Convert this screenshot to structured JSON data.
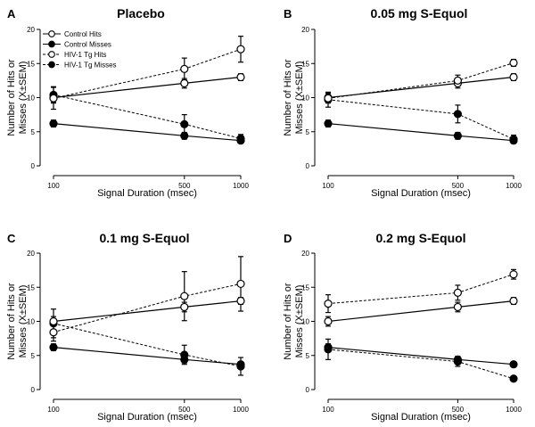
{
  "figure": {
    "panel_letters": [
      "A",
      "B",
      "C",
      "D"
    ],
    "legend": [
      "Control Hits",
      "Control Misses",
      "HIV-1 Tg Hits",
      "HIV-1 Tg Misses"
    ]
  },
  "chart_data": [
    {
      "type": "line",
      "panel": "A",
      "title": "Placebo",
      "xlabel": "Signal Duration (msec)",
      "ylabel": [
        "Number of Hits or",
        "Misses (X±SEM)"
      ],
      "x": [
        100,
        500,
        1000
      ],
      "x_tick_labels": [
        "100",
        "500",
        "1000"
      ],
      "ylim": [
        0,
        20
      ],
      "y_ticks": [
        0,
        5,
        10,
        15,
        20
      ],
      "legend_placement": "top-left",
      "series": [
        {
          "name": "Control Hits",
          "marker": "open",
          "line": "solid",
          "values": [
            10.0,
            12.1,
            13.0
          ],
          "errors": [
            0.7,
            0.7,
            0.5
          ]
        },
        {
          "name": "Control Misses",
          "marker": "filled",
          "line": "solid",
          "values": [
            6.2,
            4.4,
            3.7
          ],
          "errors": [
            0.5,
            0.5,
            0.4
          ]
        },
        {
          "name": "HIV-1 Tg Hits",
          "marker": "open",
          "line": "dashed",
          "values": [
            9.9,
            14.2,
            17.1
          ],
          "errors": [
            1.6,
            1.6,
            1.9
          ]
        },
        {
          "name": "HIV-1 Tg Misses",
          "marker": "filled",
          "line": "dashed",
          "values": [
            10.4,
            6.1,
            4.0
          ],
          "errors": [
            1.2,
            1.4,
            0.6
          ]
        }
      ]
    },
    {
      "type": "line",
      "panel": "B",
      "title": "0.05 mg S-Equol",
      "xlabel": "Signal Duration (msec)",
      "ylabel": [
        "Number of Hits or",
        "Misses (X±SEM)"
      ],
      "x": [
        100,
        500,
        1000
      ],
      "x_tick_labels": [
        "100",
        "500",
        "1000"
      ],
      "ylim": [
        0,
        20
      ],
      "y_ticks": [
        0,
        5,
        10,
        15,
        20
      ],
      "series": [
        {
          "name": "Control Hits",
          "marker": "open",
          "line": "solid",
          "values": [
            10.0,
            12.1,
            13.0
          ],
          "errors": [
            0.7,
            0.7,
            0.5
          ]
        },
        {
          "name": "Control Misses",
          "marker": "filled",
          "line": "solid",
          "values": [
            6.2,
            4.4,
            3.7
          ],
          "errors": [
            0.5,
            0.5,
            0.4
          ]
        },
        {
          "name": "HIV-1 Tg Hits",
          "marker": "open",
          "line": "dashed",
          "values": [
            9.9,
            12.5,
            15.1
          ],
          "errors": [
            0.7,
            0.8,
            0.5
          ]
        },
        {
          "name": "HIV-1 Tg Misses",
          "marker": "filled",
          "line": "dashed",
          "values": [
            9.7,
            7.6,
            3.9
          ],
          "errors": [
            1.1,
            1.3,
            0.6
          ]
        }
      ]
    },
    {
      "type": "line",
      "panel": "C",
      "title": "0.1 mg S-Equol",
      "xlabel": "Signal Duration (msec)",
      "ylabel": [
        "Number of Hits or",
        "Misses (X±SEM)"
      ],
      "x": [
        100,
        500,
        1000
      ],
      "x_tick_labels": [
        "100",
        "500",
        "1000"
      ],
      "ylim": [
        0,
        20
      ],
      "y_ticks": [
        0,
        5,
        10,
        15,
        20
      ],
      "series": [
        {
          "name": "Control Hits",
          "marker": "open",
          "line": "solid",
          "values": [
            10.0,
            12.1,
            13.0
          ],
          "errors": [
            0.7,
            0.7,
            0.5
          ]
        },
        {
          "name": "Control Misses",
          "marker": "filled",
          "line": "solid",
          "values": [
            6.2,
            4.4,
            3.7
          ],
          "errors": [
            0.5,
            0.5,
            0.4
          ]
        },
        {
          "name": "HIV-1 Tg Hits",
          "marker": "open",
          "line": "dashed",
          "values": [
            8.4,
            13.7,
            15.5
          ],
          "errors": [
            1.3,
            3.6,
            4.0
          ]
        },
        {
          "name": "HIV-1 Tg Misses",
          "marker": "filled",
          "line": "dashed",
          "values": [
            9.7,
            5.1,
            3.4
          ],
          "errors": [
            2.1,
            1.4,
            1.3
          ]
        }
      ]
    },
    {
      "type": "line",
      "panel": "D",
      "title": "0.2 mg S-Equol",
      "xlabel": "Signal Duration (msec)",
      "ylabel": [
        "Number of Hits or",
        "Misses (X±SEM)"
      ],
      "x": [
        100,
        500,
        1000
      ],
      "x_tick_labels": [
        "100",
        "500",
        "1000"
      ],
      "ylim": [
        0,
        20
      ],
      "y_ticks": [
        0,
        5,
        10,
        15,
        20
      ],
      "series": [
        {
          "name": "Control Hits",
          "marker": "open",
          "line": "solid",
          "values": [
            10.0,
            12.1,
            13.0
          ],
          "errors": [
            0.7,
            0.7,
            0.5
          ]
        },
        {
          "name": "Control Misses",
          "marker": "filled",
          "line": "solid",
          "values": [
            6.2,
            4.4,
            3.7
          ],
          "errors": [
            0.5,
            0.5,
            0.4
          ]
        },
        {
          "name": "HIV-1 Tg Hits",
          "marker": "open",
          "line": "dashed",
          "values": [
            12.6,
            14.2,
            16.9
          ],
          "errors": [
            1.3,
            1.1,
            0.7
          ]
        },
        {
          "name": "HIV-1 Tg Misses",
          "marker": "filled",
          "line": "dashed",
          "values": [
            5.9,
            4.1,
            1.6
          ],
          "errors": [
            1.5,
            0.7,
            0.2
          ]
        }
      ]
    }
  ]
}
